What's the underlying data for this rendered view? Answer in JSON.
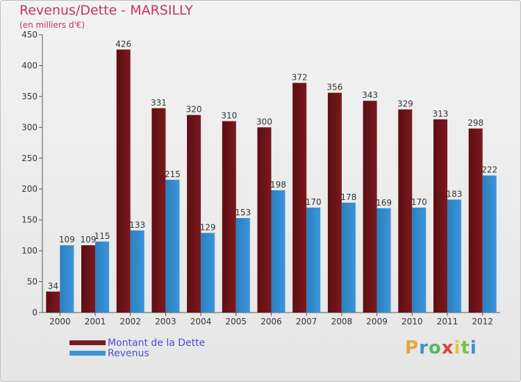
{
  "title": "Revenus/Dette - MARSILLY",
  "subtitle": "(en milliers d'€)",
  "colors": {
    "dette": "#7a1a1f",
    "revenus": "#3d95d8",
    "title": "#c0336a",
    "legend_text": "#4d4dd9"
  },
  "logo": {
    "letters": [
      "P",
      "r",
      "o",
      "x",
      "i",
      "t",
      "i"
    ],
    "colors": [
      "#e8a53b",
      "#3a8fd1",
      "#5cb85c",
      "#d9443b",
      "#e8c43b",
      "#7cc04a",
      "#3a8fd1"
    ]
  },
  "chart_data": {
    "type": "bar",
    "title": "Revenus/Dette - MARSILLY",
    "subtitle": "(en milliers d'€)",
    "categories": [
      "2000",
      "2001",
      "2002",
      "2003",
      "2004",
      "2005",
      "2006",
      "2007",
      "2008",
      "2009",
      "2010",
      "2011",
      "2012"
    ],
    "series": [
      {
        "name": "Montant de la Dette",
        "values": [
          34,
          109,
          426,
          331,
          320,
          310,
          300,
          372,
          356,
          343,
          329,
          313,
          298
        ]
      },
      {
        "name": "Revenus",
        "values": [
          109,
          115,
          133,
          215,
          129,
          153,
          198,
          170,
          178,
          169,
          170,
          183,
          222
        ]
      }
    ],
    "ylim": [
      0,
      450
    ],
    "yticks": [
      0,
      50,
      100,
      150,
      200,
      250,
      300,
      350,
      400,
      450
    ],
    "grid": false,
    "legend_position": "bottom-left"
  }
}
